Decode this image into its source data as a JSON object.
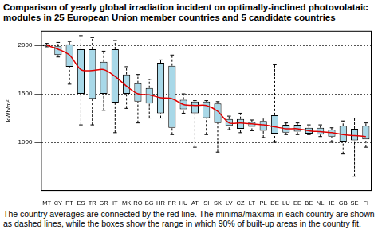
{
  "chart_data": {
    "type": "boxplot",
    "title": "Comparison of yearly global irradiation incident on optimally-inclined photovolataic modules in 25 European Union member countries and 5 candidate countries",
    "caption": "The country averages are connected by the red line. The minima/maxima in each country are shown as dashed lines, while the boxes show the range in which 90% of built-up areas in the country fit.",
    "y_label": "kWh/m²",
    "categories": [
      "MT",
      "CY",
      "PT",
      "ES",
      "TR",
      "GR",
      "IT",
      "MK",
      "RO",
      "BG",
      "HR",
      "FR",
      "HU",
      "AT",
      "SI",
      "SK",
      "LV",
      "CZ",
      "LT",
      "PL",
      "DE",
      "LU",
      "EE",
      "BE",
      "NL",
      "IE",
      "GB",
      "SE",
      "FI"
    ],
    "mean": [
      2000,
      1960,
      1900,
      1750,
      1740,
      1750,
      1680,
      1580,
      1500,
      1490,
      1460,
      1450,
      1390,
      1380,
      1380,
      1320,
      1200,
      1200,
      1190,
      1180,
      1160,
      1140,
      1140,
      1120,
      1110,
      1100,
      1080,
      1070,
      1060
    ],
    "box_low": [
      1990,
      1900,
      1780,
      1500,
      1450,
      1500,
      1410,
      1500,
      1420,
      1400,
      1300,
      1150,
      1340,
      1300,
      1250,
      1200,
      1170,
      1140,
      1160,
      1120,
      1090,
      1100,
      1110,
      1090,
      1080,
      1060,
      1000,
      1020,
      1030
    ],
    "box_high": [
      2010,
      1990,
      2010,
      1960,
      1960,
      1830,
      1960,
      1700,
      1610,
      1560,
      1820,
      1790,
      1440,
      1420,
      1420,
      1400,
      1240,
      1240,
      1210,
      1220,
      1280,
      1180,
      1180,
      1150,
      1150,
      1130,
      1170,
      1140,
      1170
    ],
    "min": [
      1985,
      1880,
      1600,
      1180,
      1180,
      1330,
      1100,
      1350,
      1200,
      1250,
      1250,
      1080,
      1300,
      950,
      1080,
      900,
      1130,
      1100,
      1120,
      1050,
      1000,
      1080,
      1080,
      1080,
      1060,
      1000,
      880,
      650,
      950
    ],
    "max": [
      2020,
      2030,
      2040,
      2100,
      2080,
      1940,
      2050,
      1780,
      1700,
      1650,
      1850,
      1900,
      1500,
      1430,
      1430,
      1420,
      1270,
      1300,
      1230,
      1250,
      1800,
      1200,
      1200,
      1180,
      1180,
      1150,
      1220,
      1250,
      1200
    ],
    "color": "#a8d8e8",
    "line_color": "#e00000",
    "ylim": [
      500,
      2150
    ],
    "yticks": [
      1000,
      1500,
      2000
    ],
    "grid": true
  }
}
